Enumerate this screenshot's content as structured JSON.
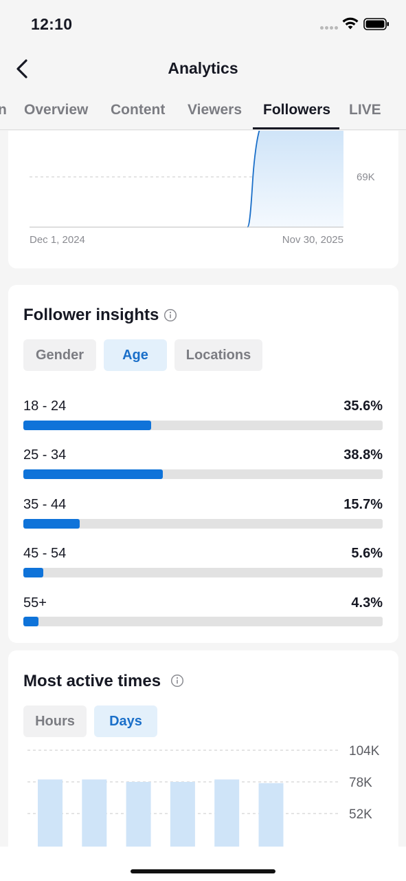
{
  "status_bar": {
    "time": "12:10",
    "icons": [
      "signal-dots-icon",
      "wifi-icon",
      "battery-icon"
    ]
  },
  "nav": {
    "title": "Analytics",
    "back_icon": "chevron-left-icon"
  },
  "tabs": [
    {
      "label": "n",
      "active": false
    },
    {
      "label": "Overview",
      "active": false
    },
    {
      "label": "Content",
      "active": false
    },
    {
      "label": "Viewers",
      "active": false
    },
    {
      "label": "Followers",
      "active": true
    },
    {
      "label": "LIVE",
      "active": false
    }
  ],
  "follower_chart": {
    "chart_data": {
      "type": "area",
      "x": [
        "Dec 1, 2024",
        "Nov 30, 2025"
      ],
      "y_tick_labels": [
        "69K"
      ],
      "grid": true,
      "color": "#1a6fc9"
    },
    "x_start_label": "Dec 1, 2024",
    "x_end_label": "Nov 30, 2025",
    "y_label": "69K"
  },
  "follower_insights": {
    "title": "Follower insights",
    "info_icon": "info-icon",
    "filters": [
      {
        "label": "Gender",
        "active": false
      },
      {
        "label": "Age",
        "active": true
      },
      {
        "label": "Locations",
        "active": false
      }
    ],
    "age_groups": [
      {
        "label": "18 - 24",
        "percent_text": "35.6%",
        "value": 35.6
      },
      {
        "label": "25 - 34",
        "percent_text": "38.8%",
        "value": 38.8
      },
      {
        "label": "35 - 44",
        "percent_text": "15.7%",
        "value": 15.7
      },
      {
        "label": "45 - 54",
        "percent_text": "5.6%",
        "value": 5.6
      },
      {
        "label": "55+",
        "percent_text": "4.3%",
        "value": 4.3
      }
    ],
    "bar_color": "#0f73d9",
    "track_color": "#e2e2e2"
  },
  "most_active_times": {
    "title": "Most active times",
    "info_icon": "info-icon",
    "filters": [
      {
        "label": "Hours",
        "active": false
      },
      {
        "label": "Days",
        "active": true
      }
    ],
    "chart_data": {
      "type": "bar",
      "y_tick_labels": [
        "104K",
        "78K",
        "52K"
      ],
      "y_ticks": [
        104000,
        78000,
        52000
      ],
      "values": [
        80000,
        80000,
        78000,
        78000,
        80000,
        77000
      ],
      "bar_color": "#cfe4f8",
      "grid": true
    }
  }
}
